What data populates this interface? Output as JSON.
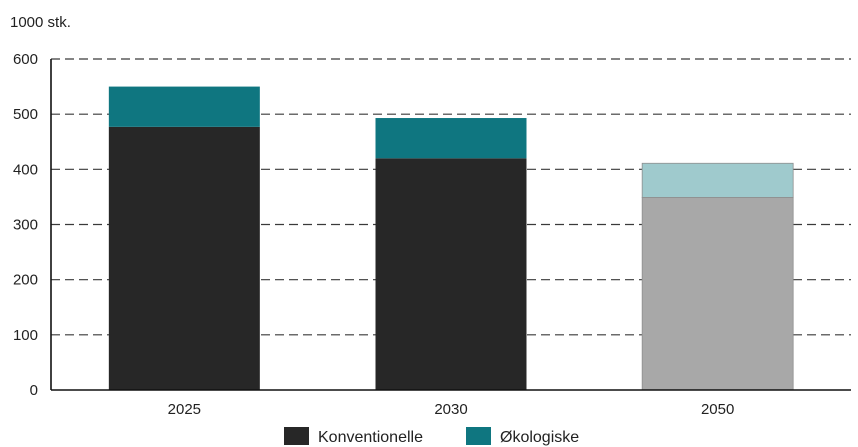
{
  "chart_data": {
    "type": "bar",
    "stacked": true,
    "title": "",
    "xlabel": "",
    "ylabel": "1000 stk.",
    "ylim": [
      0,
      600
    ],
    "yticks": [
      0,
      100,
      200,
      300,
      400,
      500,
      600
    ],
    "grid": "dashed horizontal",
    "legend_position": "bottom-center",
    "categories": [
      "2025",
      "2030",
      "2050"
    ],
    "series": [
      {
        "name": "Konventionelle",
        "color": "#272727",
        "faded_color": "#a8a8a8",
        "values": [
          477,
          420,
          349
        ]
      },
      {
        "name": "Økologiske",
        "color": "#0f7680",
        "faded_color": "#9fcacd",
        "values": [
          73,
          73,
          62
        ]
      }
    ],
    "faded_categories": [
      "2050"
    ]
  }
}
